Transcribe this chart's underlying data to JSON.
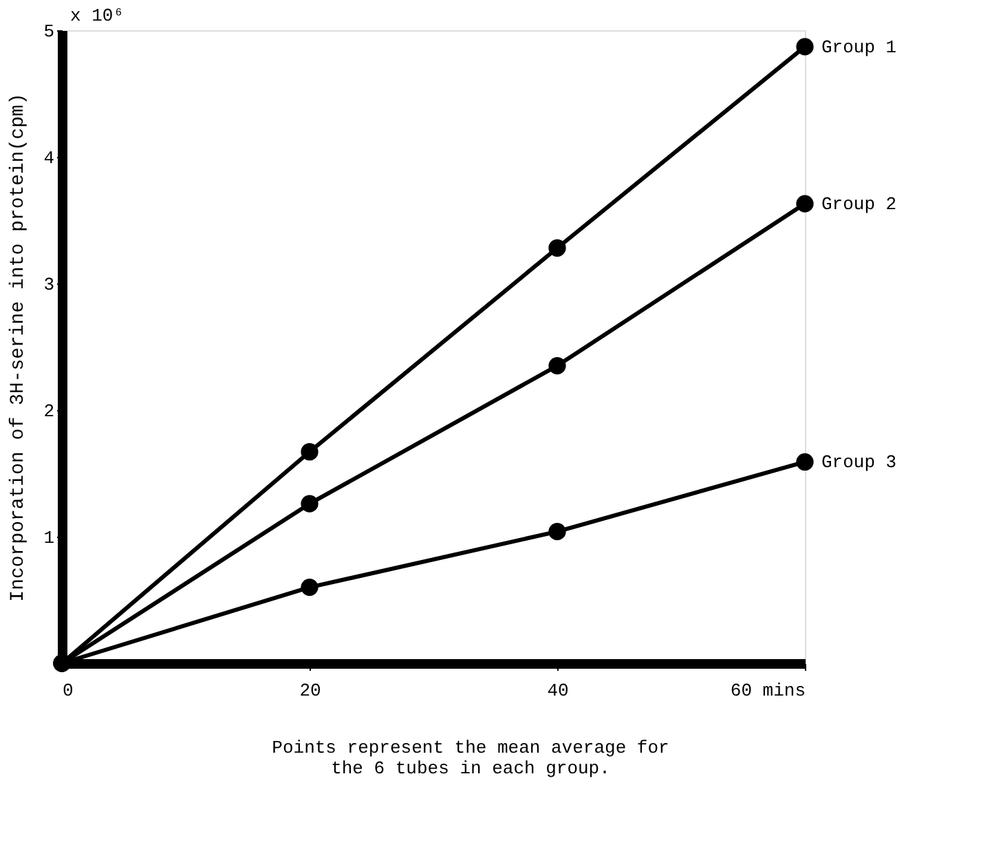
{
  "chart_data": {
    "type": "line",
    "ylabel": "Incorporation of 3H-serine into protein(cpm)",
    "x": [
      0,
      20,
      40,
      60
    ],
    "series": [
      {
        "name": "Group 1",
        "color": "#000000",
        "values": [
          0,
          1.67,
          3.28,
          4.87
        ]
      },
      {
        "name": "Group 2",
        "color": "#000000",
        "values": [
          0,
          1.26,
          2.35,
          3.63
        ]
      },
      {
        "name": "Group 3",
        "color": "#000000",
        "values": [
          0,
          0.6,
          1.04,
          1.59
        ]
      }
    ],
    "xlim": [
      0,
      60
    ],
    "xticks": [
      0,
      20,
      40,
      {
        "value": 60,
        "label": "60 mins"
      }
    ],
    "ylim": [
      0,
      5
    ],
    "yticks": [
      1,
      2,
      3,
      4,
      5
    ],
    "marker": "circle",
    "line_style": "solid",
    "grid": false,
    "legend": false,
    "annotations": [
      "x 10⁶",
      "Points represent the mean average for\nthe 6 tubes in each group."
    ]
  }
}
